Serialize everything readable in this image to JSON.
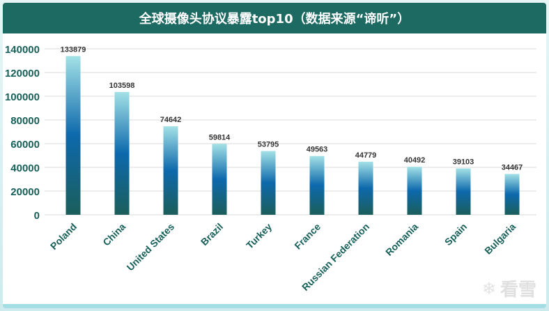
{
  "chart_data": {
    "type": "bar",
    "title": "全球摄像头协议暴露top10（数据来源“谛听”）",
    "categories": [
      "Poland",
      "China",
      "United States",
      "Brazil",
      "Turkey",
      "France",
      "Russian Federation",
      "Romania",
      "Spain",
      "Bulgaria"
    ],
    "values": [
      133879,
      103598,
      74642,
      59814,
      53795,
      49563,
      44779,
      40492,
      39103,
      34467
    ],
    "ylim": [
      0,
      140000
    ],
    "yticks": [
      0,
      20000,
      40000,
      60000,
      80000,
      100000,
      120000,
      140000
    ],
    "grid": true,
    "legend": "none",
    "colors": {
      "bar_top": "#a3e1e6",
      "bar_mid": "#0d69ac",
      "bar_bottom": "#1b5e5a",
      "axis_label": "#17605a",
      "grid": "#d9d9d9",
      "title_bar": "#1d6a63"
    }
  },
  "watermark": {
    "icon": "snowflake-icon",
    "text": "看雪"
  }
}
